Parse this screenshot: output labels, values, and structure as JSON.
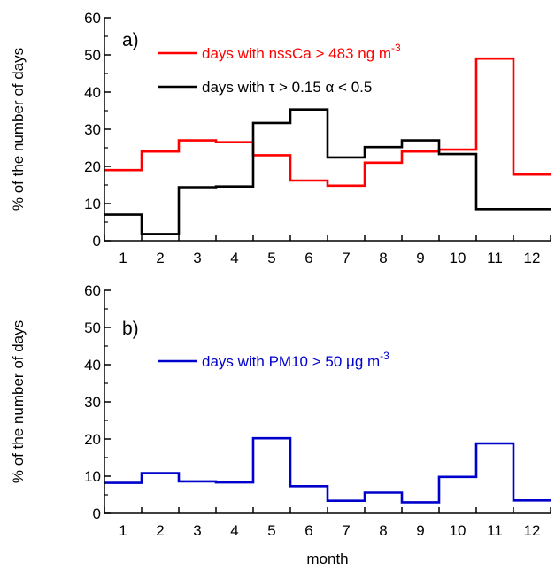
{
  "xlabel": "month",
  "chart_data": [
    {
      "type": "line",
      "step": true,
      "panel_label": "a)",
      "ylabel": "% of the number of days",
      "xlim": [
        0.5,
        12.5
      ],
      "ylim": [
        0,
        60
      ],
      "x": [
        1,
        2,
        3,
        4,
        5,
        6,
        7,
        8,
        9,
        10,
        11,
        12
      ],
      "x_ticks": [
        "1",
        "2",
        "3",
        "4",
        "5",
        "6",
        "7",
        "8",
        "9",
        "10",
        "11",
        "12"
      ],
      "y_ticks": [
        "0",
        "10",
        "20",
        "30",
        "40",
        "50",
        "60"
      ],
      "series": [
        {
          "name": "days with nssCa > 483 ng m",
          "name_sup": "-3",
          "color": "#ff0000",
          "values": [
            19,
            24,
            27,
            26.5,
            23,
            16.2,
            14.8,
            21,
            24,
            24.5,
            49,
            17.8
          ]
        },
        {
          "name_parts": [
            "days with ",
            "τ",
            " > 0.15 ",
            "α",
            " < 0.5"
          ],
          "color": "#000000",
          "values": [
            7,
            1.8,
            14.4,
            14.6,
            31.7,
            35.3,
            22.4,
            25.2,
            27,
            23.3,
            8.5,
            8.5
          ]
        }
      ]
    },
    {
      "type": "line",
      "step": true,
      "panel_label": "b)",
      "ylabel": "% of the number of days",
      "xlim": [
        0.5,
        12.5
      ],
      "ylim": [
        0,
        60
      ],
      "x": [
        1,
        2,
        3,
        4,
        5,
        6,
        7,
        8,
        9,
        10,
        11,
        12
      ],
      "x_ticks": [
        "1",
        "2",
        "3",
        "4",
        "5",
        "6",
        "7",
        "8",
        "9",
        "10",
        "11",
        "12"
      ],
      "y_ticks": [
        "0",
        "10",
        "20",
        "30",
        "40",
        "50",
        "60"
      ],
      "series": [
        {
          "name_parts": [
            "days with PM10 > 50 ",
            "μ",
            "g m"
          ],
          "name_sup": "-3",
          "color": "#0000cc",
          "values": [
            8.2,
            10.8,
            8.6,
            8.3,
            20.2,
            7.3,
            3.4,
            5.6,
            3,
            9.8,
            18.8,
            3.5
          ]
        }
      ]
    }
  ]
}
